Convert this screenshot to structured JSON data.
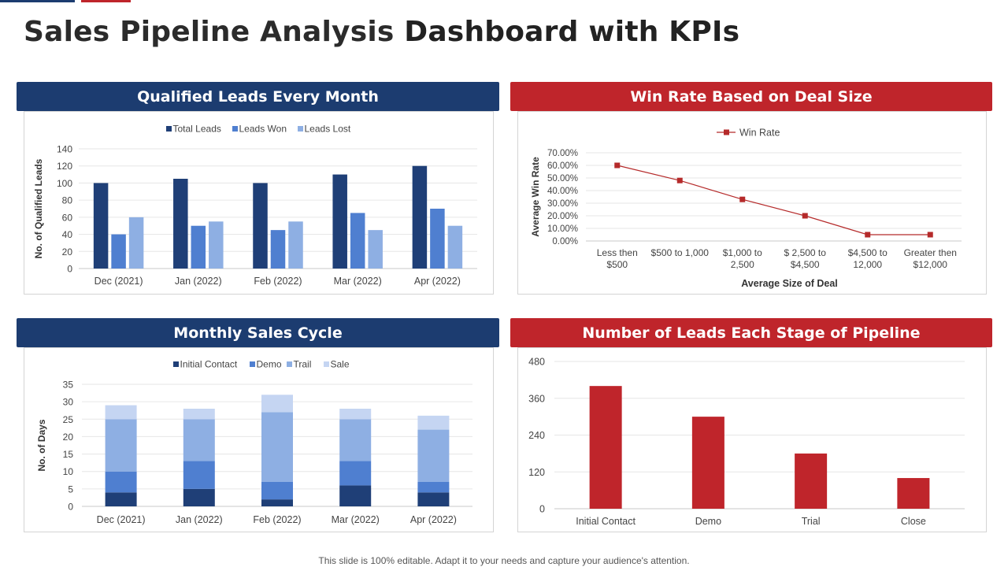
{
  "page": {
    "title_part1": "Sales Pipeline Analysis",
    "title_part2": "Dashboard with KPIs",
    "footer": "This slide is 100% editable. Adapt it to your needs and capture your audience's attention."
  },
  "colors": {
    "navy": "#1c3c70",
    "red": "#bf252b",
    "series_dark": "#1f3f77",
    "series_mid": "#4f7fd0",
    "series_light": "#8eafe3",
    "series_pale": "#c5d5f2",
    "line_red": "#b52a2a"
  },
  "panels": {
    "qualified_leads": {
      "title": "Qualified Leads Every Month"
    },
    "win_rate": {
      "title": "Win Rate Based on Deal Size"
    },
    "sales_cycle": {
      "title": "Monthly Sales Cycle"
    },
    "pipeline": {
      "title": "Number of Leads Each Stage of Pipeline"
    }
  },
  "chart_data": [
    {
      "id": "qualified_leads",
      "type": "bar",
      "title": "Qualified Leads Every Month",
      "categories": [
        "Dec (2021)",
        "Jan (2022)",
        "Feb (2022)",
        "Mar (2022)",
        "Apr (2022)"
      ],
      "series": [
        {
          "name": "Total Leads",
          "values": [
            100,
            105,
            100,
            110,
            120
          ]
        },
        {
          "name": "Leads Won",
          "values": [
            40,
            50,
            45,
            65,
            70
          ]
        },
        {
          "name": "Leads Lost",
          "values": [
            60,
            55,
            55,
            45,
            50
          ]
        }
      ],
      "xlabel": "",
      "ylabel": "No. of Qualified Leads",
      "ylim": [
        0,
        140
      ],
      "yticks": [
        0,
        20,
        40,
        60,
        80,
        100,
        120,
        140
      ],
      "legend": "top",
      "grid": true
    },
    {
      "id": "win_rate",
      "type": "line",
      "title": "Win Rate Based on Deal Size",
      "categories": [
        [
          "Less then",
          "$500"
        ],
        [
          "$500 to 1,000"
        ],
        [
          "$1,000 to",
          "2,500"
        ],
        [
          "$ 2,500 to",
          "$4,500"
        ],
        [
          "$4,500 to",
          "12,000"
        ],
        [
          "Greater then",
          "$12,000"
        ]
      ],
      "series": [
        {
          "name": "Win Rate",
          "values": [
            60,
            48,
            33,
            20,
            5,
            5
          ]
        }
      ],
      "xlabel": "Average Size of Deal",
      "ylabel": "Average Win Rate",
      "ylim": [
        0,
        70
      ],
      "ytick_labels": [
        "0.00%",
        "10.00%",
        "20.00%",
        "30.00%",
        "40.00%",
        "50.00%",
        "60.00%",
        "70.00%"
      ],
      "legend": "top",
      "grid": true
    },
    {
      "id": "sales_cycle",
      "type": "bar",
      "stacked": true,
      "title": "Monthly Sales Cycle",
      "categories": [
        "Dec (2021)",
        "Jan (2022)",
        "Feb (2022)",
        "Mar (2022)",
        "Apr (2022)"
      ],
      "series": [
        {
          "name": "Initial Contact",
          "values": [
            4,
            5,
            2,
            6,
            4
          ]
        },
        {
          "name": "Demo",
          "values": [
            6,
            8,
            5,
            7,
            3
          ]
        },
        {
          "name": "Trail",
          "values": [
            15,
            12,
            20,
            12,
            15
          ]
        },
        {
          "name": "Sale",
          "values": [
            4,
            3,
            5,
            3,
            4
          ]
        }
      ],
      "xlabel": "",
      "ylabel": "No. of Days",
      "ylim": [
        0,
        35
      ],
      "yticks": [
        0,
        5,
        10,
        15,
        20,
        25,
        30,
        35
      ],
      "legend": "top",
      "grid": true
    },
    {
      "id": "pipeline",
      "type": "bar",
      "title": "Number of Leads Each Stage of Pipeline",
      "categories": [
        "Initial Contact",
        "Demo",
        "Trial",
        "Close"
      ],
      "values": [
        400,
        300,
        180,
        100
      ],
      "xlabel": "",
      "ylabel": "",
      "ylim": [
        0,
        480
      ],
      "yticks": [
        0,
        120,
        240,
        360,
        480
      ],
      "legend": "none",
      "grid": true
    }
  ]
}
